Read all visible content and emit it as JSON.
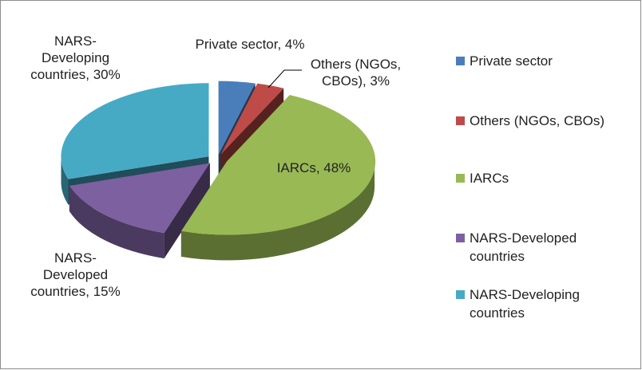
{
  "chart_data": {
    "type": "pie",
    "categories": [
      "Private sector",
      "Others (NGOs, CBOs)",
      "IARCs",
      "NARS-Developed countries",
      "NARS-Developing countries"
    ],
    "values": [
      4,
      3,
      48,
      15,
      30
    ],
    "value_labels": [
      "Private sector, 4%",
      "Others (NGOs, CBOs), 3%",
      "IARCs, 48%",
      "NARS-Developed countries, 15%",
      "NARS-Developing countries, 30%"
    ],
    "colors": [
      "#4a7ebb",
      "#be4b48",
      "#98b954",
      "#7d60a0",
      "#46aac5"
    ],
    "legend": "right"
  }
}
